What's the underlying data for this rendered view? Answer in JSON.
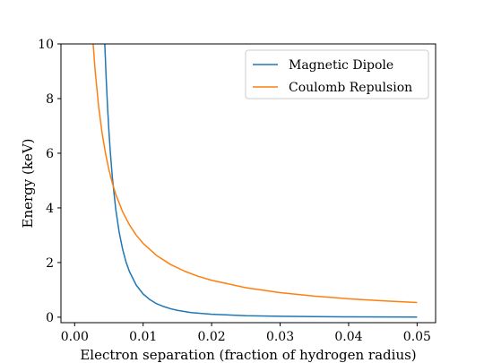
{
  "chart_data": {
    "type": "line",
    "title": "",
    "xlabel": "Electron separation (fraction of hydrogen radius)",
    "ylabel": "Energy (keV)",
    "xlim": [
      -0.002,
      0.0527
    ],
    "ylim": [
      -0.2,
      10
    ],
    "xticks": [
      0.0,
      0.01,
      0.02,
      0.03,
      0.04,
      0.05
    ],
    "xtick_labels": [
      "0.00",
      "0.01",
      "0.02",
      "0.03",
      "0.04",
      "0.05"
    ],
    "yticks": [
      0,
      2,
      4,
      6,
      8,
      10
    ],
    "ytick_labels": [
      "0",
      "2",
      "4",
      "6",
      "8",
      "10"
    ],
    "grid": false,
    "legend_position": "top-right",
    "series": [
      {
        "name": "Magnetic Dipole",
        "color": "#1f77b4",
        "x": [
          0.0044,
          0.0046,
          0.0048,
          0.005,
          0.0052,
          0.0055,
          0.006,
          0.0065,
          0.007,
          0.0075,
          0.008,
          0.009,
          0.01,
          0.011,
          0.012,
          0.013,
          0.014,
          0.015,
          0.017,
          0.02,
          0.025,
          0.03,
          0.035,
          0.04,
          0.045,
          0.05
        ],
        "values": [
          10.0,
          8.76,
          7.72,
          6.83,
          6.07,
          5.13,
          3.95,
          3.11,
          2.49,
          2.02,
          1.67,
          1.17,
          0.85,
          0.64,
          0.49,
          0.39,
          0.31,
          0.25,
          0.17,
          0.107,
          0.055,
          0.032,
          0.02,
          0.013,
          0.0095,
          0.007
        ]
      },
      {
        "name": "Coulomb Repulsion",
        "color": "#ff7f0e",
        "x": [
          0.0027,
          0.003,
          0.0035,
          0.004,
          0.0045,
          0.005,
          0.0055,
          0.006,
          0.007,
          0.008,
          0.009,
          0.01,
          0.012,
          0.014,
          0.016,
          0.018,
          0.02,
          0.025,
          0.03,
          0.035,
          0.04,
          0.045,
          0.05
        ],
        "values": [
          10.0,
          9.0,
          7.71,
          6.75,
          6.0,
          5.4,
          4.91,
          4.5,
          3.86,
          3.38,
          3.0,
          2.7,
          2.25,
          1.93,
          1.69,
          1.5,
          1.35,
          1.08,
          0.9,
          0.77,
          0.675,
          0.6,
          0.54
        ]
      }
    ]
  }
}
